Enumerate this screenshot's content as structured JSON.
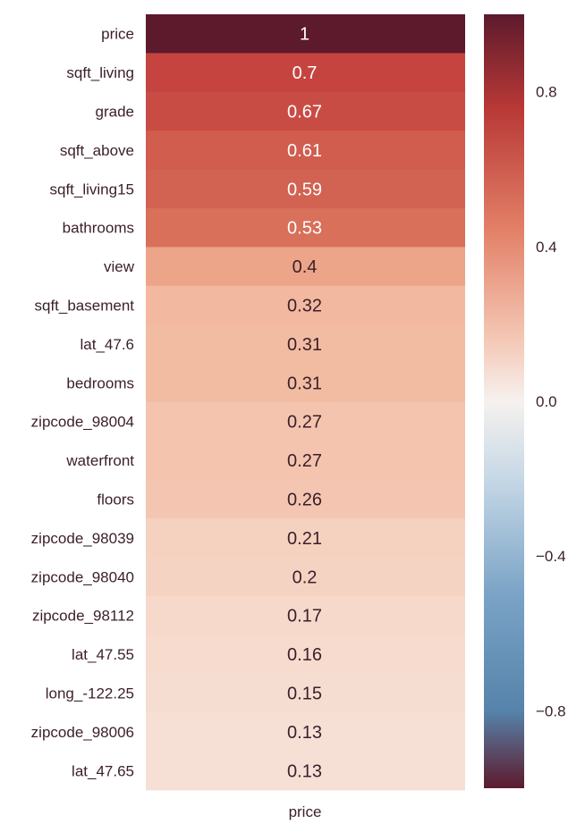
{
  "chart_data": {
    "type": "heatmap",
    "column": "price",
    "rows": [
      "price",
      "sqft_living",
      "grade",
      "sqft_above",
      "sqft_living15",
      "bathrooms",
      "view",
      "sqft_basement",
      "lat_47.6",
      "bedrooms",
      "zipcode_98004",
      "waterfront",
      "floors",
      "zipcode_98039",
      "zipcode_98040",
      "zipcode_98112",
      "lat_47.55",
      "long_-122.25",
      "zipcode_98006",
      "lat_47.65"
    ],
    "values": [
      1,
      0.7,
      0.67,
      0.61,
      0.59,
      0.53,
      0.4,
      0.32,
      0.31,
      0.31,
      0.27,
      0.27,
      0.26,
      0.21,
      0.2,
      0.17,
      0.16,
      0.15,
      0.13,
      0.13
    ],
    "value_labels": [
      "1",
      "0.7",
      "0.67",
      "0.61",
      "0.59",
      "0.53",
      "0.4",
      "0.32",
      "0.31",
      "0.31",
      "0.27",
      "0.27",
      "0.26",
      "0.21",
      "0.2",
      "0.17",
      "0.16",
      "0.15",
      "0.13",
      "0.13"
    ],
    "colorbar": {
      "range": [
        -1,
        1
      ],
      "ticks": [
        0.8,
        0.4,
        0.0,
        -0.4,
        -0.8
      ],
      "tick_labels": [
        "0.8",
        "0.4",
        "0.0",
        "−0.4",
        "−0.8"
      ]
    },
    "colormap": "diverging blue-white-red",
    "colors": {
      "negative": "#5a8ab2",
      "neutral": "#f7f1ee",
      "positive": "#5c1a2c",
      "text_dark": "#3a1f2a",
      "text_light": "#ffffff"
    }
  }
}
